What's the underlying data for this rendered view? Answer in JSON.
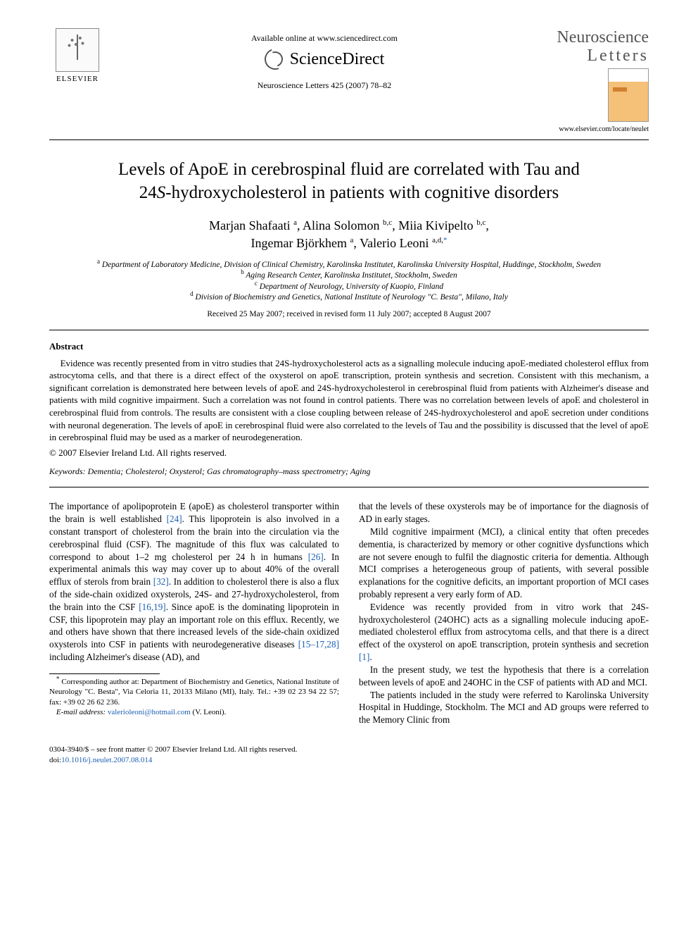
{
  "header": {
    "elsevier_label": "ELSEVIER",
    "available_line": "Available online at www.sciencedirect.com",
    "sciencedirect_label": "ScienceDirect",
    "journal_ref": "Neuroscience Letters 425 (2007) 78–82",
    "journal_title_line1": "Neuroscience",
    "journal_title_line2": "Letters",
    "journal_url": "www.elsevier.com/locate/neulet"
  },
  "title_line1": "Levels of ApoE in cerebrospinal fluid are correlated with Tau and",
  "title_line2": "24S-hydroxycholesterol in patients with cognitive disorders",
  "authors": {
    "a1": {
      "name": "Marjan Shafaati",
      "sup": "a"
    },
    "a2": {
      "name": "Alina Solomon",
      "sup": "b,c"
    },
    "a3": {
      "name": "Miia Kivipelto",
      "sup": "b,c"
    },
    "a4": {
      "name": "Ingemar Björkhem",
      "sup": "a"
    },
    "a5": {
      "name": "Valerio Leoni",
      "sup": "a,d,",
      "star": "*"
    }
  },
  "affiliations": {
    "a": "Department of Laboratory Medicine, Division of Clinical Chemistry, Karolinska Institutet, Karolinska University Hospital, Huddinge, Stockholm, Sweden",
    "b": "Aging Research Center, Karolinska Institutet, Stockholm, Sweden",
    "c": "Department of Neurology, University of Kuopio, Finland",
    "d": "Division of Biochemistry and Genetics, National Institute of Neurology \"C. Besta\", Milano, Italy"
  },
  "dates": "Received 25 May 2007; received in revised form 11 July 2007; accepted 8 August 2007",
  "abstract": {
    "heading": "Abstract",
    "body": "Evidence was recently presented from in vitro studies that 24S-hydroxycholesterol acts as a signalling molecule inducing apoE-mediated cholesterol efflux from astrocytoma cells, and that there is a direct effect of the oxysterol on apoE transcription, protein synthesis and secretion. Consistent with this mechanism, a significant correlation is demonstrated here between levels of apoE and 24S-hydroxycholesterol in cerebrospinal fluid from patients with Alzheimer's disease and patients with mild cognitive impairment. Such a correlation was not found in control patients. There was no correlation between levels of apoE and cholesterol in cerebrospinal fluid from controls. The results are consistent with a close coupling between release of 24S-hydroxycholesterol and apoE secretion under conditions with neuronal degeneration. The levels of apoE in cerebrospinal fluid were also correlated to the levels of Tau and the possibility is discussed that the level of apoE in cerebrospinal fluid may be used as a marker of neurodegeneration.",
    "copyright": "© 2007 Elsevier Ireland Ltd. All rights reserved."
  },
  "keywords": {
    "label": "Keywords:",
    "list": "Dementia; Cholesterol; Oxysterol; Gas chromatography–mass spectrometry; Aging"
  },
  "body": {
    "p1a": "The importance of apolipoprotein E (apoE) as cholesterol transporter within the brain is well established ",
    "p1_ref1": "[24]",
    "p1b": ". This lipoprotein is also involved in a constant transport of cholesterol from the brain into the circulation via the cerebrospinal fluid (CSF). The magnitude of this flux was calculated to correspond to about 1–2 mg cholesterol per 24 h in humans ",
    "p1_ref2": "[26]",
    "p1c": ". In experimental animals this way may cover up to about 40% of the overall efflux of sterols from brain ",
    "p1_ref3": "[32]",
    "p1d": ". In addition to cholesterol there is also a flux of the side-chain oxidized oxysterols, 24S- and 27-hydroxycholesterol, from the brain into the CSF ",
    "p1_ref4": "[16,19]",
    "p1e": ". Since apoE is the dominating lipoprotein in CSF, this lipoprotein may play an important role on this efflux. Recently, we and others have shown that there increased levels of the side-chain oxidized oxysterols into CSF in patients with neurodegenerative diseases ",
    "p1_ref5": "[15–17,28]",
    "p1f": " including Alzheimer's disease (AD), and",
    "p2": "that the levels of these oxysterols may be of importance for the diagnosis of AD in early stages.",
    "p3": "Mild cognitive impairment (MCI), a clinical entity that often precedes dementia, is characterized by memory or other cognitive dysfunctions which are not severe enough to fulfil the diagnostic criteria for dementia. Although MCI comprises a heterogeneous group of patients, with several possible explanations for the cognitive deficits, an important proportion of MCI cases probably represent a very early form of AD.",
    "p4a": "Evidence was recently provided from in vitro work that 24S-hydroxycholesterol (24OHC) acts as a signalling molecule inducing apoE-mediated cholesterol efflux from astrocytoma cells, and that there is a direct effect of the oxysterol on apoE transcription, protein synthesis and secretion ",
    "p4_ref1": "[1]",
    "p4b": ".",
    "p5": "In the present study, we test the hypothesis that there is a correlation between levels of apoE and 24OHC in the CSF of patients with AD and MCI.",
    "p6": "The patients included in the study were referred to Karolinska University Hospital in Huddinge, Stockholm. The MCI and AD groups were referred to the Memory Clinic from"
  },
  "footnotes": {
    "corr": "Corresponding author at: Department of Biochemistry and Genetics, National Institute of Neurology \"C. Besta\", Via Celoria 11, 20133 Milano (MI), Italy. Tel.: +39 02 23 94 22 57; fax: +39 02 26 62 236.",
    "email_label": "E-mail address:",
    "email": "valerioleoni@hotmail.com",
    "email_paren": "(V. Leoni)."
  },
  "footer": {
    "left_line1": "0304-3940/$ – see front matter © 2007 Elsevier Ireland Ltd. All rights reserved.",
    "doi_prefix": "doi:",
    "doi": "10.1016/j.neulet.2007.08.014"
  },
  "colors": {
    "link": "#1b5fb3",
    "text": "#000000",
    "bg": "#ffffff"
  }
}
